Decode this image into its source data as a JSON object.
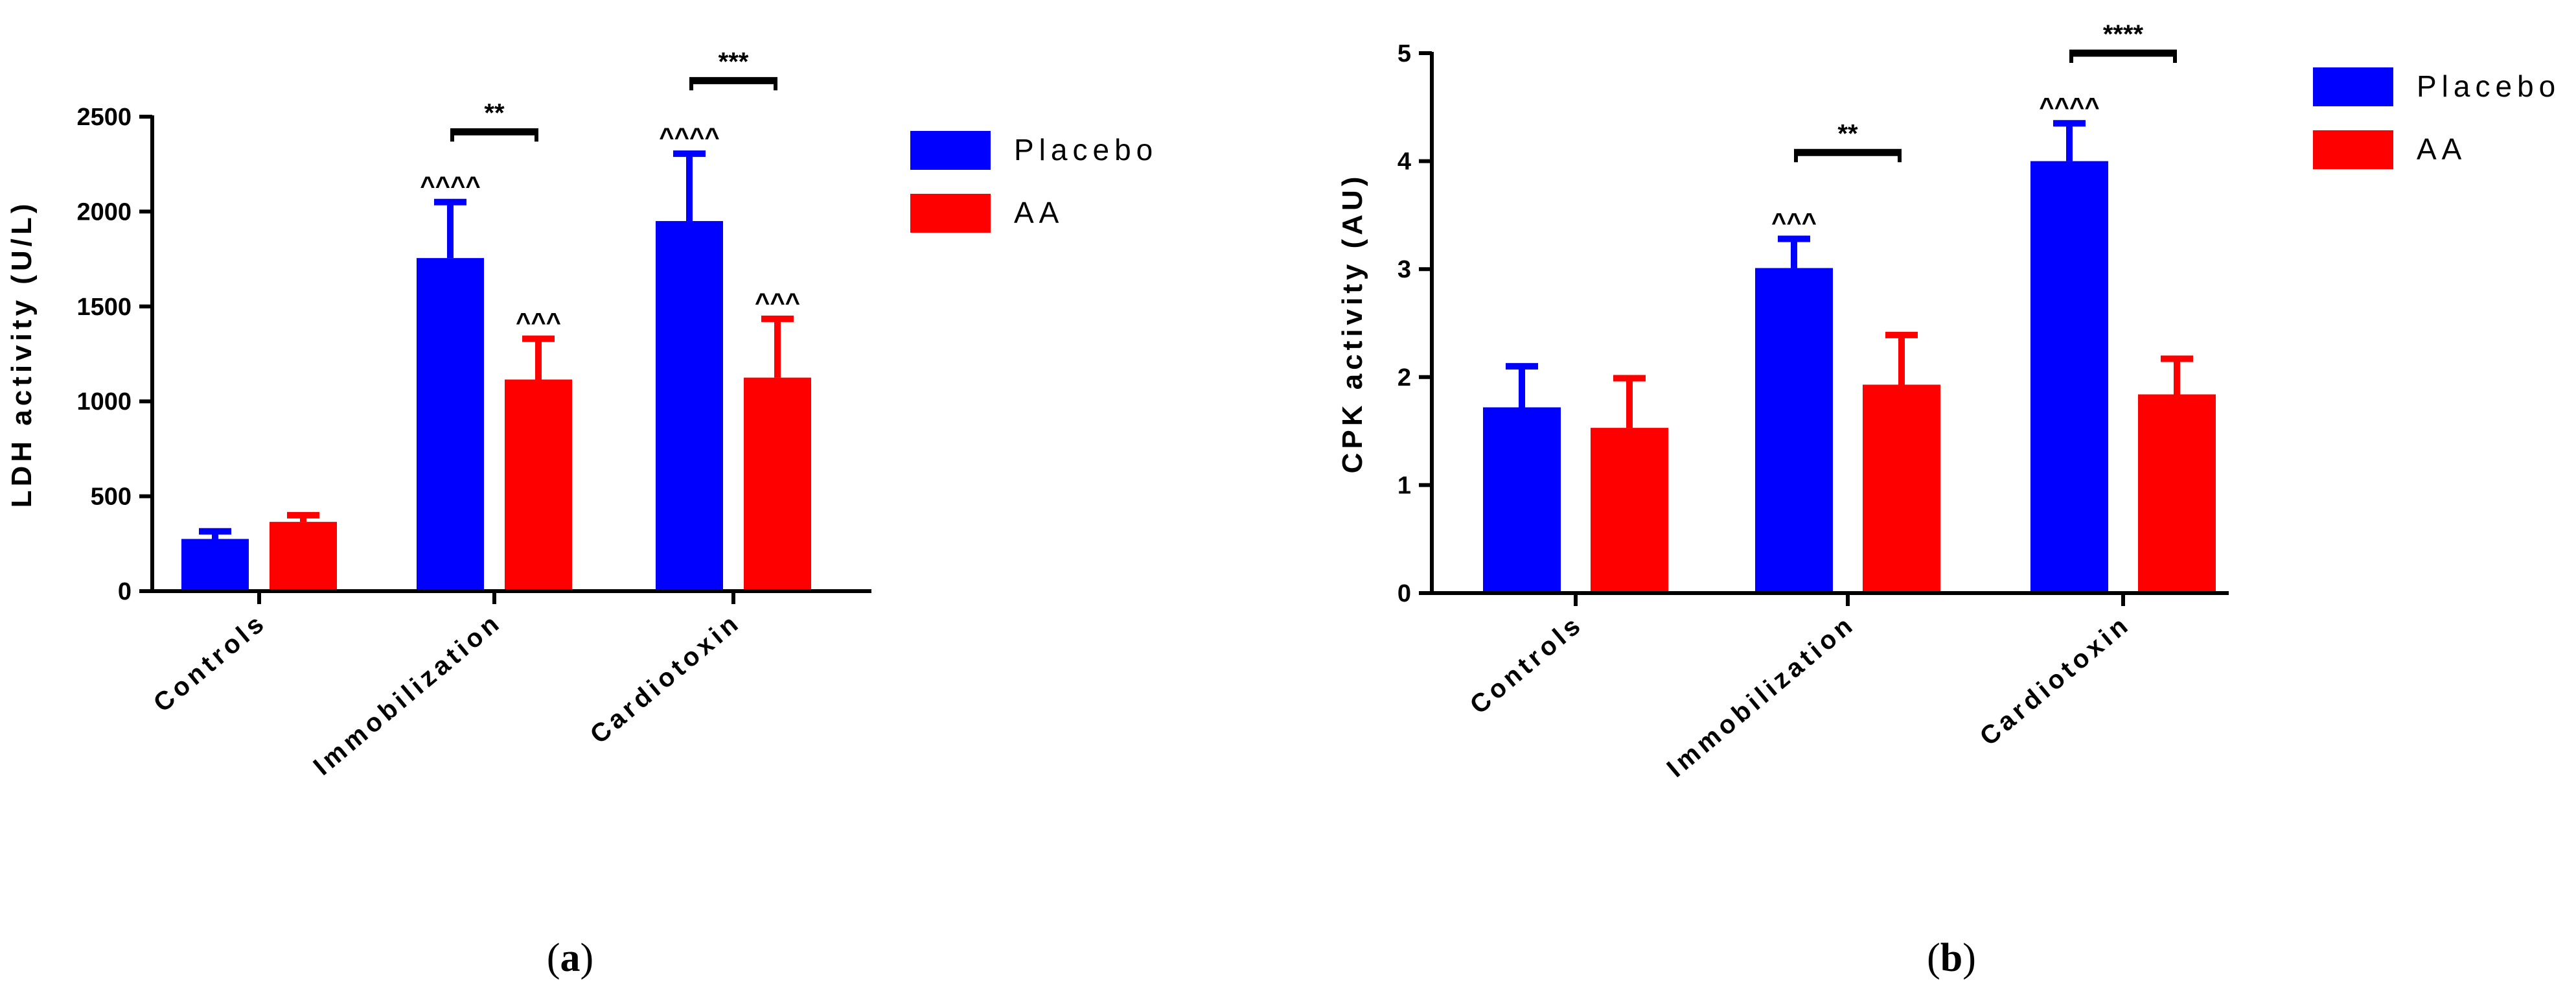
{
  "chart_data": [
    {
      "panel": "a",
      "type": "bar",
      "title": "",
      "xlabel": "",
      "ylabel": "LDH activity (U/L)",
      "ylim": [
        0,
        2500
      ],
      "yticks": [
        0,
        500,
        1000,
        1500,
        2000,
        2500
      ],
      "categories": [
        "Controls",
        "Immobilization",
        "Cardiotoxin"
      ],
      "legend_position": "top-right",
      "colors": {
        "Placebo": "#0000ff",
        "AA": "#ff0000"
      },
      "series": [
        {
          "name": "Placebo",
          "values": [
            275,
            1755,
            1950
          ],
          "errors": [
            40,
            295,
            355
          ],
          "annotations": [
            "",
            "^^^^",
            "^^^^"
          ]
        },
        {
          "name": "AA",
          "values": [
            365,
            1115,
            1125
          ],
          "errors": [
            35,
            215,
            310
          ],
          "annotations": [
            "",
            "^^^",
            "^^^"
          ]
        }
      ],
      "significance": [
        {
          "category": "Immobilization",
          "label": "**",
          "level": 2420
        },
        {
          "category": "Cardiotoxin",
          "label": "***",
          "level": 2690
        }
      ]
    },
    {
      "panel": "b",
      "type": "bar",
      "title": "",
      "xlabel": "",
      "ylabel": "CPK activity (AU)",
      "ylim": [
        0,
        5
      ],
      "yticks": [
        0,
        1,
        2,
        3,
        4,
        5
      ],
      "categories": [
        "Controls",
        "Immobilization",
        "Cardiotoxin"
      ],
      "legend_position": "top-right",
      "colors": {
        "Placebo": "#0000ff",
        "AA": "#ff0000"
      },
      "series": [
        {
          "name": "Placebo",
          "values": [
            1.72,
            3.01,
            4.0
          ],
          "errors": [
            0.38,
            0.27,
            0.35
          ],
          "annotations": [
            "",
            "^^^",
            "^^^^"
          ]
        },
        {
          "name": "AA",
          "values": [
            1.53,
            1.93,
            1.84
          ],
          "errors": [
            0.46,
            0.46,
            0.33
          ],
          "annotations": [
            "",
            "",
            ""
          ]
        }
      ],
      "significance": [
        {
          "category": "Immobilization",
          "label": "**",
          "level": 4.08
        },
        {
          "category": "Cardiotoxin",
          "label": "****",
          "level": 5.0
        }
      ]
    }
  ],
  "panel_labels": [
    "a",
    "b"
  ]
}
